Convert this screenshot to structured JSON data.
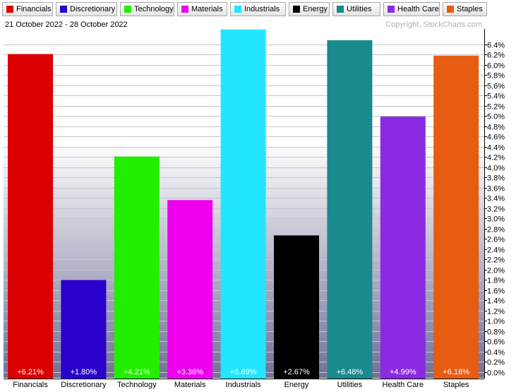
{
  "date_range": "21 October 2022 - 28 October 2022",
  "copyright": "Copyright, StockCharts.com",
  "chart_data": {
    "type": "bar",
    "categories": [
      "Financials",
      "Discretionary",
      "Technology",
      "Materials",
      "Industrials",
      "Energy",
      "Utilities",
      "Health Care",
      "Staples"
    ],
    "values": [
      6.21,
      1.8,
      4.21,
      3.36,
      6.69,
      2.67,
      6.48,
      4.99,
      6.18
    ],
    "value_labels": [
      "+6.21%",
      "+1.80%",
      "+4.21%",
      "+3.36%",
      "+6.69%",
      "+2.67%",
      "+6.48%",
      "+4.99%",
      "+6.18%"
    ],
    "colors": [
      "#dd0000",
      "#2a00cc",
      "#22ee00",
      "#ee00ee",
      "#22e6ff",
      "#000000",
      "#1a8a8e",
      "#8a2be2",
      "#e65c12"
    ],
    "ylim": [
      0,
      6.7
    ],
    "y_ticks": [
      "0.0%",
      "0.2%",
      "0.4%",
      "0.6%",
      "0.8%",
      "1.0%",
      "1.2%",
      "1.4%",
      "1.6%",
      "1.8%",
      "2.0%",
      "2.2%",
      "2.4%",
      "2.6%",
      "2.8%",
      "3.0%",
      "3.2%",
      "3.4%",
      "3.6%",
      "3.8%",
      "4.0%",
      "4.2%",
      "4.4%",
      "4.6%",
      "4.8%",
      "5.0%",
      "5.2%",
      "5.4%",
      "5.6%",
      "5.8%",
      "6.0%",
      "6.2%",
      "6.4%"
    ],
    "y_axis_side": "right",
    "grid": true,
    "legend_position": "top"
  }
}
